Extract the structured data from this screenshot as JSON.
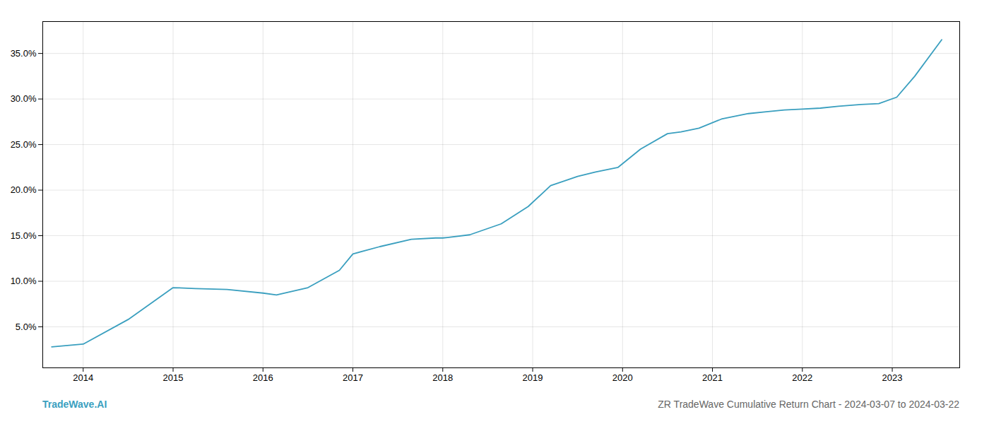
{
  "chart_data": {
    "type": "line",
    "x": [
      2013.65,
      2014.0,
      2014.5,
      2015.0,
      2015.25,
      2015.6,
      2016.0,
      2016.15,
      2016.5,
      2016.85,
      2017.0,
      2017.3,
      2017.65,
      2017.92,
      2018.0,
      2018.05,
      2018.3,
      2018.65,
      2018.95,
      2019.2,
      2019.5,
      2019.7,
      2019.95,
      2020.2,
      2020.5,
      2020.65,
      2020.85,
      2021.1,
      2021.4,
      2021.6,
      2021.8,
      2022.0,
      2022.2,
      2022.4,
      2022.65,
      2022.85,
      2023.05,
      2023.25,
      2023.55
    ],
    "values": [
      2.8,
      3.1,
      5.8,
      9.3,
      9.2,
      9.1,
      8.7,
      8.5,
      9.3,
      11.2,
      13.0,
      13.8,
      14.6,
      14.75,
      14.75,
      14.8,
      15.1,
      16.3,
      18.2,
      20.5,
      21.5,
      22.0,
      22.5,
      24.5,
      26.2,
      26.4,
      26.8,
      27.8,
      28.4,
      28.6,
      28.8,
      28.9,
      29.0,
      29.2,
      29.4,
      29.5,
      30.2,
      32.5,
      36.5
    ],
    "color": "#3a9fbf",
    "xlim": [
      2013.55,
      2023.75
    ],
    "xticks": [
      2014,
      2015,
      2016,
      2017,
      2018,
      2019,
      2020,
      2021,
      2022,
      2023
    ],
    "ylim": [
      0.5,
      38.5
    ],
    "yticks": [
      {
        "value": 5.0,
        "label": "5.0%"
      },
      {
        "value": 10.0,
        "label": "10.0%"
      },
      {
        "value": 15.0,
        "label": "15.0%"
      },
      {
        "value": 20.0,
        "label": "20.0%"
      },
      {
        "value": 25.0,
        "label": "25.0%"
      },
      {
        "value": 30.0,
        "label": "30.0%"
      },
      {
        "value": 35.0,
        "label": "35.0%"
      }
    ],
    "grid": true,
    "annotations": [
      {
        "text": "TradeWave.AI",
        "color": "#3a9fbf"
      },
      {
        "text": "ZR TradeWave Cumulative Return Chart - 2024-03-07 to 2024-03-22",
        "color": "#666666"
      }
    ]
  }
}
